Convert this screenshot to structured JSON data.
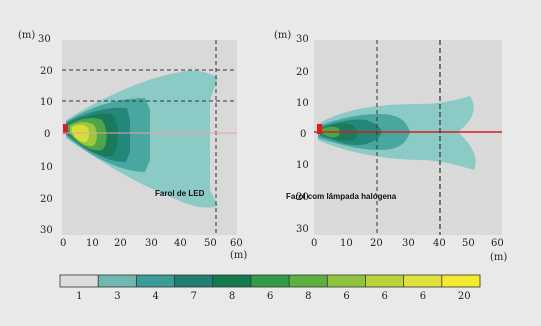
{
  "chart_data": [
    {
      "type": "heatmap",
      "caption": "Farol de LED",
      "y_unit": "(m)",
      "x_unit": "(m)",
      "x_ticks": [
        "0",
        "10",
        "20",
        "30",
        "40",
        "50",
        "60"
      ],
      "y_ticks": [
        "30",
        "20",
        "10",
        "0",
        "10",
        "20",
        "30"
      ],
      "xlim": [
        0,
        60
      ],
      "ylim": [
        -30,
        30
      ],
      "grid": "dashed reference lines at y=20 and y=10 (left side), x=50",
      "background": "#d9d9d9"
    },
    {
      "type": "heatmap",
      "caption": "Farol com lâmpada halógena",
      "y_unit": "(m)",
      "x_unit": "(m)",
      "x_ticks": [
        "0",
        "10",
        "20",
        "30",
        "40",
        "50",
        "60"
      ],
      "y_ticks": [
        "30",
        "20",
        "10",
        "0",
        "10",
        "20",
        "30"
      ],
      "xlim": [
        0,
        60
      ],
      "ylim": [
        -30,
        30
      ],
      "grid": "dashed reference lines at x=20 and x=40",
      "background": "#d9d9d9"
    }
  ],
  "legend": {
    "labels": [
      "1",
      "3",
      "4",
      "7",
      "8",
      "6",
      "8",
      "6",
      "6",
      "6",
      "20"
    ],
    "colors": [
      "#dcdcdc",
      "#6fb8b0",
      "#3a9c96",
      "#1f7f72",
      "#147a4c",
      "#2f9a48",
      "#5cb040",
      "#8ec43c",
      "#b8d43a",
      "#dfe23a",
      "#f4ea30"
    ]
  }
}
